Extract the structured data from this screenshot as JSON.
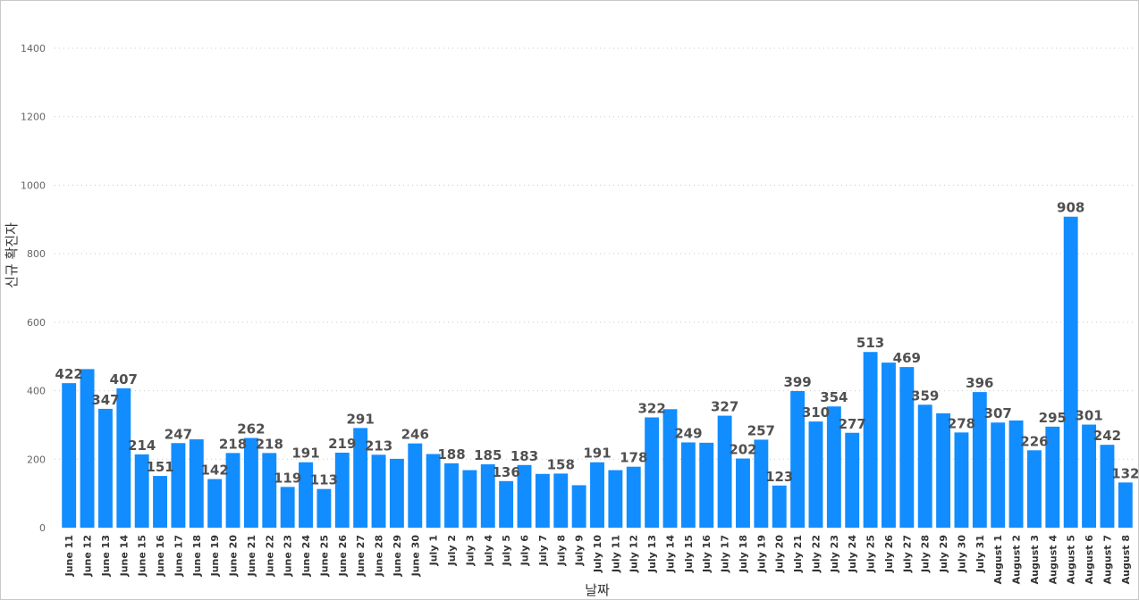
{
  "chart_data": {
    "type": "bar",
    "title": "",
    "xlabel": "날짜",
    "ylabel": "신규 확진자",
    "ylim": [
      0,
      1400
    ],
    "yticks": [
      0,
      200,
      400,
      600,
      800,
      1000,
      1200,
      1400
    ],
    "grid": true,
    "bar_color": "#118dff",
    "categories": [
      "June 11",
      "June 12",
      "June 13",
      "June 14",
      "June 15",
      "June 16",
      "June 17",
      "June 18",
      "June 19",
      "June 20",
      "June 21",
      "June 22",
      "June 23",
      "June 24",
      "June 25",
      "June 26",
      "June 27",
      "June 28",
      "June 29",
      "June 30",
      "July 1",
      "July 2",
      "July 3",
      "July 4",
      "July 5",
      "July 6",
      "July 7",
      "July 8",
      "July 9",
      "July 10",
      "July 11",
      "July 12",
      "July 13",
      "July 14",
      "July 15",
      "July 16",
      "July 17",
      "July 18",
      "July 19",
      "July 20",
      "July 21",
      "July 22",
      "July 23",
      "July 24",
      "July 25",
      "July 26",
      "July 27",
      "July 28",
      "July 29",
      "July 30",
      "July 31",
      "August 1",
      "August 2",
      "August 3",
      "August 4",
      "August 5",
      "August 6",
      "August 7",
      "August 8"
    ],
    "values": [
      422,
      463,
      347,
      407,
      214,
      151,
      247,
      258,
      142,
      218,
      262,
      218,
      119,
      191,
      113,
      219,
      291,
      213,
      201,
      246,
      215,
      188,
      168,
      185,
      136,
      183,
      157,
      158,
      124,
      191,
      168,
      178,
      322,
      346,
      249,
      248,
      327,
      202,
      257,
      123,
      399,
      310,
      354,
      277,
      513,
      482,
      469,
      359,
      334,
      278,
      396,
      307,
      313,
      226,
      295,
      908,
      301,
      242,
      132
    ],
    "data_labels": [
      "422",
      null,
      "347",
      "407",
      "214",
      "151",
      "247",
      null,
      "142",
      "218",
      "262",
      "218",
      "119",
      "191",
      "113",
      "219",
      "291",
      "213",
      null,
      "246",
      null,
      "188",
      null,
      "185",
      "136",
      "183",
      null,
      "158",
      null,
      "191",
      null,
      "178",
      "322",
      null,
      "249",
      null,
      "327",
      "202",
      "257",
      "123",
      "399",
      "310",
      "354",
      "277",
      "513",
      null,
      "469",
      "359",
      null,
      "278",
      "396",
      "307",
      null,
      "226",
      "295",
      "908",
      "301",
      "242",
      "132"
    ]
  }
}
